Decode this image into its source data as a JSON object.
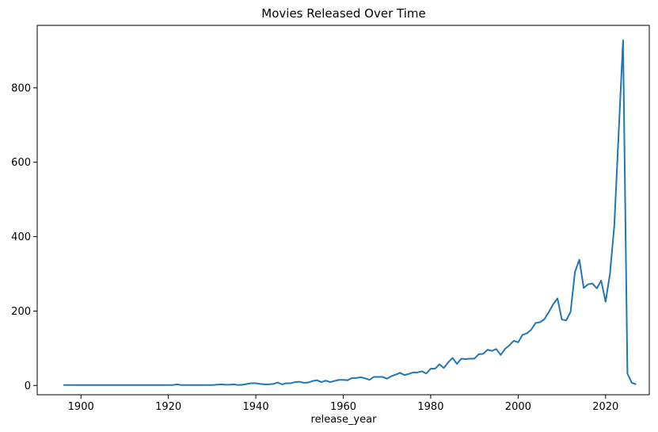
{
  "chart_data": {
    "type": "line",
    "title": "Movies Released Over Time",
    "xlabel": "release_year",
    "ylabel": "",
    "xlim": [
      1890,
      2030
    ],
    "ylim": [
      -25,
      968
    ],
    "x_ticks": [
      1900,
      1920,
      1940,
      1960,
      1980,
      2000,
      2020
    ],
    "y_ticks": [
      0,
      200,
      400,
      600,
      800
    ],
    "grid": false,
    "legend": "none",
    "series": [
      {
        "color": "#1f77b4",
        "x": [
          1896,
          1897,
          1898,
          1899,
          1900,
          1901,
          1902,
          1903,
          1904,
          1905,
          1906,
          1907,
          1908,
          1909,
          1910,
          1911,
          1912,
          1913,
          1914,
          1915,
          1916,
          1917,
          1918,
          1919,
          1920,
          1921,
          1922,
          1923,
          1924,
          1925,
          1926,
          1927,
          1928,
          1929,
          1930,
          1931,
          1932,
          1933,
          1934,
          1935,
          1936,
          1937,
          1938,
          1939,
          1940,
          1941,
          1942,
          1943,
          1944,
          1945,
          1946,
          1947,
          1948,
          1949,
          1950,
          1951,
          1952,
          1953,
          1954,
          1955,
          1956,
          1957,
          1958,
          1959,
          1960,
          1961,
          1962,
          1963,
          1964,
          1965,
          1966,
          1967,
          1968,
          1969,
          1970,
          1971,
          1972,
          1973,
          1974,
          1975,
          1976,
          1977,
          1978,
          1979,
          1980,
          1981,
          1982,
          1983,
          1984,
          1985,
          1986,
          1987,
          1988,
          1989,
          1990,
          1991,
          1992,
          1993,
          1994,
          1995,
          1996,
          1997,
          1998,
          1999,
          2000,
          2001,
          2002,
          2003,
          2004,
          2005,
          2006,
          2007,
          2008,
          2009,
          2010,
          2011,
          2012,
          2013,
          2014,
          2015,
          2016,
          2017,
          2018,
          2019,
          2020,
          2021,
          2022,
          2023,
          2024,
          2025,
          2026,
          2027
        ],
        "y": [
          1,
          1,
          1,
          1,
          1,
          1,
          1,
          1,
          1,
          1,
          1,
          1,
          1,
          1,
          1,
          1,
          1,
          1,
          1,
          1,
          1,
          1,
          1,
          1,
          1,
          1,
          3,
          1,
          1,
          1,
          1,
          1,
          1,
          1,
          1,
          2,
          3,
          2,
          2,
          3,
          1,
          2,
          4,
          6,
          6,
          4,
          3,
          3,
          4,
          8,
          3,
          6,
          6,
          9,
          10,
          7,
          8,
          12,
          14,
          9,
          13,
          9,
          12,
          15,
          15,
          14,
          20,
          20,
          22,
          19,
          15,
          23,
          23,
          23,
          18,
          25,
          29,
          34,
          28,
          31,
          35,
          35,
          38,
          32,
          45,
          45,
          57,
          47,
          62,
          74,
          58,
          72,
          71,
          72,
          72,
          84,
          85,
          96,
          93,
          98,
          82,
          98,
          108,
          120,
          116,
          136,
          140,
          150,
          168,
          170,
          178,
          197,
          218,
          234,
          177,
          175,
          198,
          305,
          338,
          262,
          272,
          274,
          261,
          282,
          225,
          300,
          430,
          680,
          928,
          32,
          7,
          3
        ]
      }
    ]
  }
}
